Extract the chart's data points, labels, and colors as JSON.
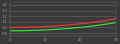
{
  "background_color": "#3a3a3a",
  "plot_bg_color": "#3a3a3a",
  "grid_color": "#666666",
  "xlim": [
    0,
    30
  ],
  "ylim": [
    0.85,
    1.45
  ],
  "line_tangent_color": "#ff3333",
  "line_secant_color": "#33ee33",
  "line_width": 0.8,
  "tick_color": "#aaaaaa",
  "figsize": [
    1.2,
    0.44
  ],
  "dpi": 100,
  "std_par_deg": 20
}
